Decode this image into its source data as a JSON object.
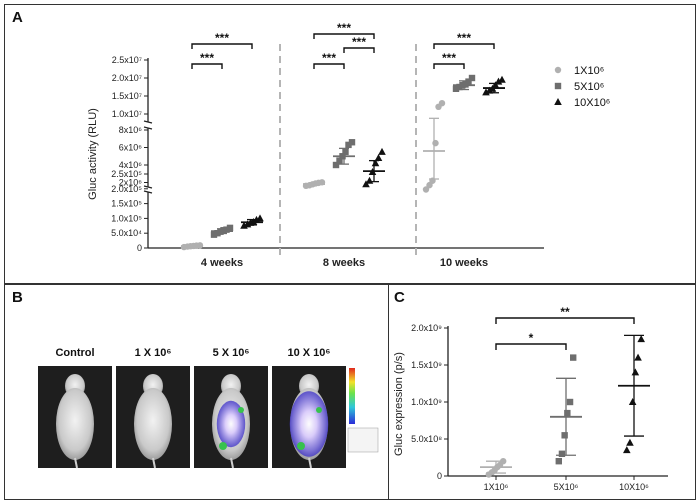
{
  "panels": {
    "a": "A",
    "b": "B",
    "c": "C"
  },
  "colors": {
    "s1": "#b0b0b0",
    "s2": "#6e6e6e",
    "s3": "#111111",
    "divider": "#b5b5b5"
  },
  "chart_data": [
    {
      "type": "scatter",
      "panel": "A",
      "ylabel": "Gluc activity (RLU)",
      "categories": [
        "4 weeks",
        "8 weeks",
        "10 weeks"
      ],
      "y_axis_segments": [
        {
          "range": [
            0,
            250000
          ],
          "ticks": [
            "0",
            "5.0x10⁴",
            "1.0x10⁵",
            "1.5x10⁵",
            "2.0x10⁵",
            "2.5x10⁵"
          ]
        },
        {
          "range": [
            0,
            8000000
          ],
          "ticks": [
            "2x10⁶",
            "4x10⁶",
            "6x10⁶",
            "8x10⁶"
          ]
        },
        {
          "range": [
            10000000,
            25000000
          ],
          "ticks": [
            "1.0x10⁷",
            "1.5x10⁷",
            "2.0x10⁷",
            "2.5x10⁷"
          ]
        }
      ],
      "legend": [
        "1X10⁶",
        "5X10⁶",
        "10X10⁶"
      ],
      "legend_position": "right",
      "series": [
        {
          "name": "1X10⁶",
          "marker": "circle",
          "groups": [
            {
              "category": "4 weeks",
              "points": [
                3000,
                5000,
                6000,
                7000,
                8000,
                9000
              ],
              "mean": 6500,
              "sd": 2000
            },
            {
              "category": "8 weeks",
              "points": [
                210000,
                212000,
                215000,
                218000,
                220000,
                222000
              ],
              "mean": 216000,
              "sd": 4000
            },
            {
              "category": "10 weeks",
              "points": [
                1200000,
                1700000,
                2200000,
                6500000,
                12000000,
                13000000
              ],
              "mean": 5600000,
              "sd": 3200000
            }
          ]
        },
        {
          "name": "5X10⁶",
          "marker": "square",
          "groups": [
            {
              "category": "4 weeks",
              "points": [
                45000,
                50000,
                55000,
                60000,
                62000,
                68000
              ],
              "mean": 57000,
              "sd": 8000
            },
            {
              "category": "8 weeks",
              "points": [
                4000000,
                4500000,
                5000000,
                5500000,
                6300000,
                6600000
              ],
              "mean": 5000000,
              "sd": 900000
            },
            {
              "category": "10 weeks",
              "points": [
                17000000,
                17500000,
                18000000,
                18200000,
                19000000,
                20000000
              ],
              "mean": 18000000,
              "sd": 1200000
            }
          ]
        },
        {
          "name": "10X10⁶",
          "marker": "triangle",
          "groups": [
            {
              "category": "4 weeks",
              "points": [
                75000,
                80000,
                85000,
                88000,
                95000,
                100000
              ],
              "mean": 87000,
              "sd": 9000
            },
            {
              "category": "8 weeks",
              "points": [
                1800000,
                2200000,
                3200000,
                4200000,
                4800000,
                5500000
              ],
              "mean": 3300000,
              "sd": 1200000
            },
            {
              "category": "10 weeks",
              "points": [
                16000000,
                16500000,
                17000000,
                18000000,
                19000000,
                19500000
              ],
              "mean": 17200000,
              "sd": 1300000
            }
          ]
        }
      ],
      "significance": [
        {
          "category": "4 weeks",
          "from": "1X10⁶",
          "to": "5X10⁶",
          "label": "***"
        },
        {
          "category": "4 weeks",
          "from": "1X10⁶",
          "to": "10X10⁶",
          "label": "***"
        },
        {
          "category": "8 weeks",
          "from": "1X10⁶",
          "to": "5X10⁶",
          "label": "***"
        },
        {
          "category": "8 weeks",
          "from": "5X10⁶",
          "to": "10X10⁶",
          "label": "***"
        },
        {
          "category": "8 weeks",
          "from": "1X10⁶",
          "to": "10X10⁶",
          "label": "***"
        },
        {
          "category": "10 weeks",
          "from": "1X10⁶",
          "to": "5X10⁶",
          "label": "***"
        },
        {
          "category": "10 weeks",
          "from": "1X10⁶",
          "to": "10X10⁶",
          "label": "***"
        }
      ]
    },
    {
      "type": "scatter",
      "panel": "C",
      "ylabel": "Gluc expression (p/s)",
      "categories": [
        "1X10⁶",
        "5X10⁶",
        "10X10⁶"
      ],
      "ylim": [
        0,
        2000000000
      ],
      "yticks": [
        {
          "value": 0,
          "label": "0"
        },
        {
          "value": 500000000,
          "label": "5.0x10⁸"
        },
        {
          "value": 1000000000,
          "label": "1.0x10⁹"
        },
        {
          "value": 1500000000,
          "label": "1.5x10⁹"
        },
        {
          "value": 2000000000,
          "label": "2.0x10⁹"
        }
      ],
      "series": [
        {
          "name": "1X10⁶",
          "marker": "circle",
          "points": [
            20000000,
            50000000,
            80000000,
            120000000,
            150000000,
            200000000
          ],
          "mean": 120000000,
          "sd": 80000000
        },
        {
          "name": "5X10⁶",
          "marker": "square",
          "points": [
            200000000,
            300000000,
            550000000,
            850000000,
            1000000000,
            1600000000
          ],
          "mean": 800000000,
          "sd": 520000000
        },
        {
          "name": "10X10⁶",
          "marker": "triangle",
          "points": [
            350000000,
            450000000,
            1000000000,
            1400000000,
            1600000000,
            1850000000
          ],
          "mean": 1220000000,
          "sd": 680000000
        }
      ],
      "significance": [
        {
          "from": "1X10⁶",
          "to": "5X10⁶",
          "label": "*"
        },
        {
          "from": "1X10⁶",
          "to": "10X10⁶",
          "label": "**"
        }
      ]
    }
  ],
  "images": {
    "labels": [
      "Control",
      "1 X 10⁶",
      "5 X 10⁶",
      "10 X 10⁶"
    ],
    "signal": [
      0,
      0,
      0.6,
      0.9
    ]
  }
}
